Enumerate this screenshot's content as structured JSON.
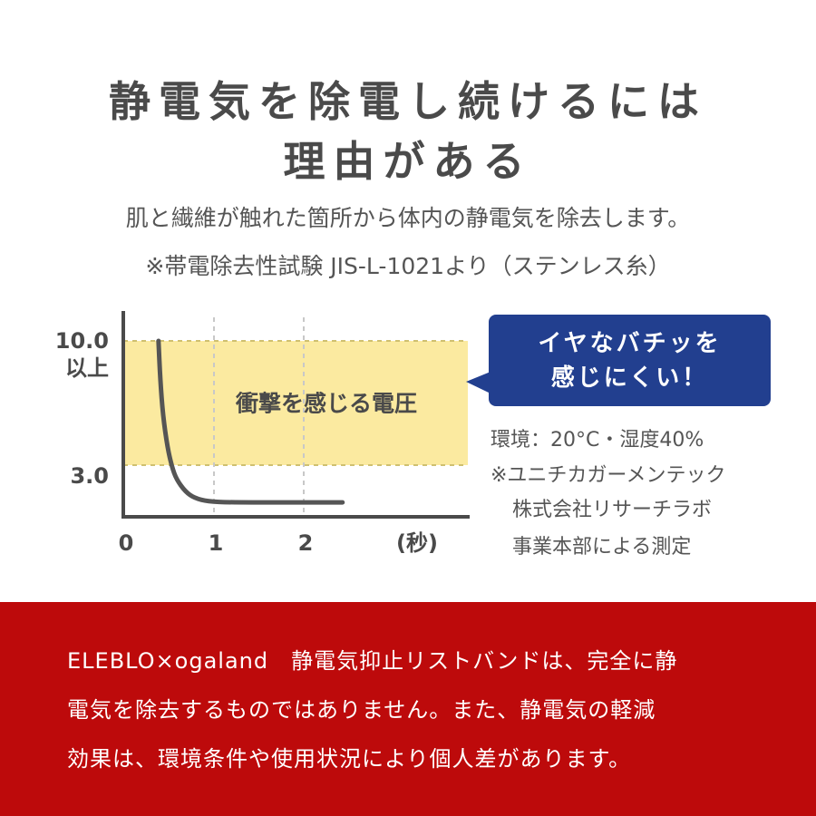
{
  "heading": {
    "line1": "静電気を除電し続けるには",
    "line2": "理由がある"
  },
  "subtitle": {
    "line1": "肌と繊維が触れた箇所から体内の静電気を除去します。",
    "line2": "※帯電除去性試験 JIS-L-1021より（ステンレス糸）"
  },
  "chart_data": {
    "type": "line",
    "x_ticks": [
      "0",
      "1",
      "2"
    ],
    "x_unit": "(秒)",
    "y_ticks": [
      {
        "value": 10.0,
        "label": "10.0",
        "sublabel": "以上"
      },
      {
        "value": 3.0,
        "label": "3.0"
      }
    ],
    "band": {
      "from": 3.0,
      "to": 10.0,
      "label": "衝撃を感じる電圧",
      "color": "#fbeaa0"
    },
    "series": [
      {
        "color": "#555555",
        "x": [
          0.2,
          0.22,
          0.25,
          0.3,
          0.35,
          0.4,
          0.5,
          0.6,
          0.75,
          1.0,
          1.5,
          2.25
        ],
        "y": [
          10.0,
          7.8,
          5.8,
          4.0,
          2.9,
          2.2,
          1.5,
          1.15,
          0.95,
          0.9,
          0.9,
          0.9
        ]
      }
    ],
    "xlim": [
      0,
      3.8
    ],
    "ylim": [
      0,
      11.0
    ],
    "grid_x": [
      1,
      2
    ]
  },
  "callout": {
    "line1": "イヤなバチッを",
    "line2": "感じにくい！",
    "bg": "#223f8f"
  },
  "notes": {
    "environment": "環境：20°C・湿度40%",
    "measured_by_1": "※ユニチカガーメンテック",
    "measured_by_2": "株式会社リサーチラボ",
    "measured_by_3": "事業本部による測定"
  },
  "footer": {
    "bg": "#bd0a0b",
    "line1": "ELEBLO×ogaland　静電気抑止リストバンドは、完全に静",
    "line2": "電気を除去するものではありません。また、静電気の軽減",
    "line3": "効果は、環境条件や使用状況により個人差があります。"
  }
}
